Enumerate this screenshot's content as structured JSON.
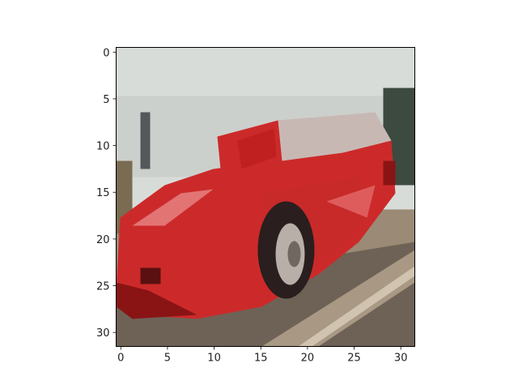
{
  "figure": {
    "subject": "pixelated red sports car",
    "xticks": [
      "0",
      "5",
      "10",
      "15",
      "20",
      "25",
      "30"
    ],
    "yticks": [
      "0",
      "5",
      "10",
      "15",
      "20",
      "25",
      "30"
    ],
    "extent": {
      "x": [
        -0.5,
        31.5
      ],
      "y": [
        -0.5,
        31.5
      ]
    },
    "colors": {
      "sky": "#d8dcd8",
      "car_red": "#cc2a2a",
      "car_dark": "#8a1414",
      "car_highlight": "#e37474",
      "window": "#c8b8b4",
      "ground": "#9a8a76",
      "ground_dark": "#6e6256",
      "tree": "#3c4a40",
      "tire": "#2a1e1e",
      "rim": "#b8b0a8",
      "stripe": "#d0c4b0"
    }
  }
}
